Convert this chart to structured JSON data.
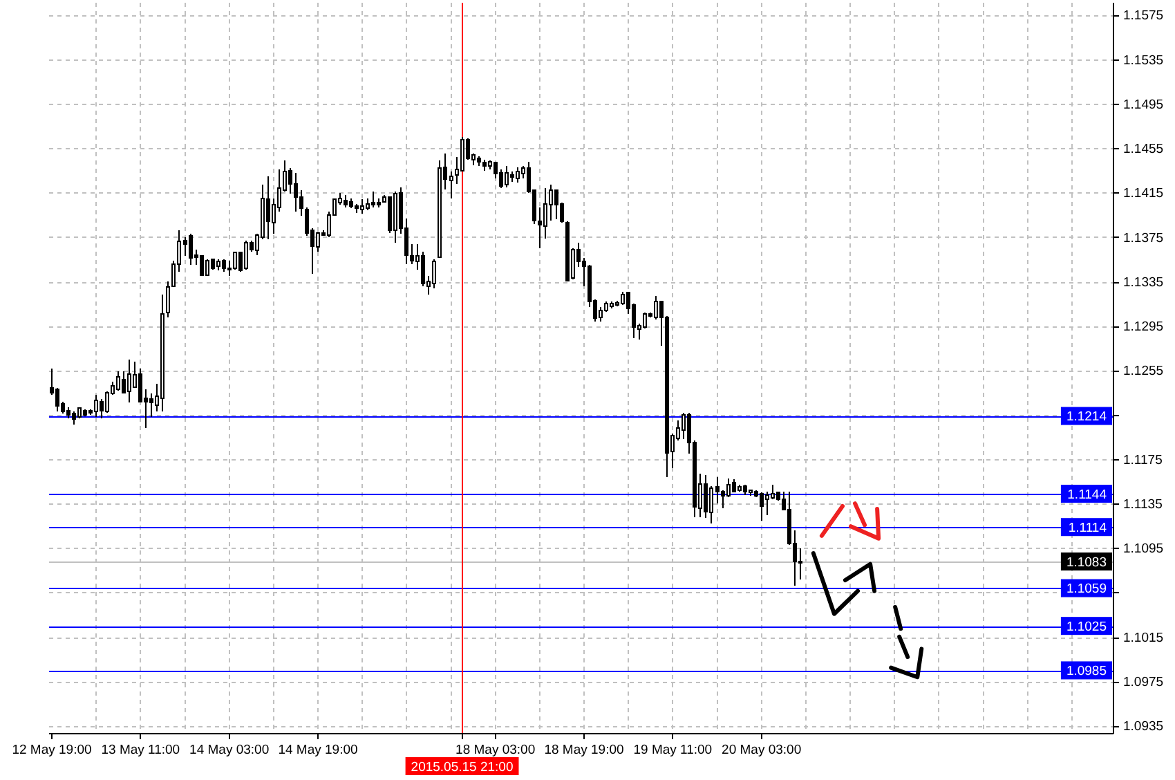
{
  "chart_data": {
    "type": "candlestick",
    "categories": [
      "12 May 19:00",
      null,
      null,
      null,
      null,
      null,
      null,
      null,
      null,
      null,
      null,
      null,
      null,
      null,
      null,
      null,
      "13 May 11:00",
      null,
      null,
      null,
      null,
      null,
      null,
      null,
      null,
      null,
      null,
      null,
      null,
      null,
      null,
      null,
      "14 May 03:00",
      null,
      null,
      null,
      null,
      null,
      null,
      null,
      null,
      null,
      null,
      null,
      null,
      null,
      null,
      null,
      "14 May 19:00",
      null,
      null,
      null,
      null,
      null,
      null,
      null,
      null,
      null,
      null,
      null,
      null,
      null,
      null,
      null,
      null,
      null,
      null,
      null,
      null,
      null,
      null,
      null,
      null,
      null,
      "2015.05.15 21:00",
      null,
      null,
      null,
      null,
      null,
      "18 May 03:00",
      null,
      null,
      null,
      null,
      null,
      null,
      null,
      null,
      null,
      null,
      null,
      null,
      null,
      null,
      null,
      "18 May 19:00",
      null,
      null,
      null,
      null,
      null,
      null,
      null,
      null,
      null,
      null,
      null,
      null,
      null,
      null,
      null,
      "19 May 11:00",
      null,
      null,
      null,
      null,
      null,
      null,
      null,
      null,
      null,
      null,
      null,
      null,
      null,
      null,
      null,
      "20 May 03:00",
      null,
      null,
      null,
      null,
      null,
      null,
      null,
      null,
      null,
      null,
      null,
      null,
      null,
      null,
      null,
      null,
      null,
      null,
      null,
      null,
      null,
      null,
      null,
      null,
      null,
      null,
      null,
      null,
      null,
      null,
      null,
      null,
      null,
      null,
      null,
      null,
      null,
      null,
      null,
      null,
      null,
      null,
      null,
      null,
      null,
      null,
      null,
      null,
      null,
      null,
      null,
      null,
      null,
      null,
      null,
      null,
      null,
      null,
      null,
      null,
      null,
      null,
      null
    ],
    "ohlc": [
      [
        1.1239,
        1.1257,
        1.1233,
        1.1235
      ],
      [
        1.1238,
        1.1239,
        1.1218,
        1.1223
      ],
      [
        1.1225,
        1.1227,
        1.1216,
        1.1218
      ],
      [
        1.1219,
        1.1222,
        1.1212,
        1.1215
      ],
      [
        1.1216,
        1.1218,
        1.1206,
        1.1211
      ],
      [
        1.1213,
        1.1222,
        1.1212,
        1.1221
      ],
      [
        1.1219,
        1.122,
        1.1214,
        1.1215
      ],
      [
        1.1219,
        1.122,
        1.1215,
        1.1217
      ],
      [
        1.1218,
        1.1233,
        1.1213,
        1.1228
      ],
      [
        1.1227,
        1.1229,
        1.1212,
        1.1219
      ],
      [
        1.1218,
        1.1236,
        1.1217,
        1.1235
      ],
      [
        1.1234,
        1.1245,
        1.1233,
        1.1241
      ],
      [
        1.1238,
        1.1254,
        1.1237,
        1.1249
      ],
      [
        1.1247,
        1.1254,
        1.1234,
        1.1235
      ],
      [
        1.1236,
        1.1265,
        1.1226,
        1.1252
      ],
      [
        1.124,
        1.1263,
        1.1239,
        1.1251
      ],
      [
        1.1252,
        1.1257,
        1.1226,
        1.1227
      ],
      [
        1.123,
        1.1238,
        1.1203,
        1.1227
      ],
      [
        1.1229,
        1.1234,
        1.1213,
        1.1226
      ],
      [
        1.1224,
        1.1243,
        1.1218,
        1.1232
      ],
      [
        1.123,
        1.1323,
        1.1218,
        1.1306
      ],
      [
        1.1307,
        1.1335,
        1.1303,
        1.133
      ],
      [
        1.1331,
        1.1354,
        1.133,
        1.1351
      ],
      [
        1.1351,
        1.1381,
        1.1344,
        1.1371
      ],
      [
        1.1372,
        1.1375,
        1.1358,
        1.1369
      ],
      [
        1.1376,
        1.1378,
        1.135,
        1.1356
      ],
      [
        1.1359,
        1.1364,
        1.135,
        1.1357
      ],
      [
        1.1358,
        1.1359,
        1.134,
        1.1341
      ],
      [
        1.1341,
        1.1355,
        1.134,
        1.1354
      ],
      [
        1.1355,
        1.1355,
        1.1346,
        1.1347
      ],
      [
        1.1349,
        1.1355,
        1.1345,
        1.1353
      ],
      [
        1.1354,
        1.1355,
        1.1344,
        1.1347
      ],
      [
        1.1347,
        1.1354,
        1.134,
        1.1346
      ],
      [
        1.1347,
        1.1362,
        1.1346,
        1.1361
      ],
      [
        1.1361,
        1.1362,
        1.1344,
        1.1345
      ],
      [
        1.1347,
        1.1372,
        1.1346,
        1.137
      ],
      [
        1.137,
        1.1372,
        1.1362,
        1.1364
      ],
      [
        1.1363,
        1.1378,
        1.1359,
        1.1377
      ],
      [
        1.1375,
        1.1422,
        1.1373,
        1.141
      ],
      [
        1.1409,
        1.143,
        1.1373,
        1.1389
      ],
      [
        1.1388,
        1.141,
        1.1378,
        1.1404
      ],
      [
        1.1402,
        1.1436,
        1.1398,
        1.1419
      ],
      [
        1.1417,
        1.1444,
        1.1416,
        1.1434
      ],
      [
        1.1435,
        1.1437,
        1.1414,
        1.1423
      ],
      [
        1.1423,
        1.1433,
        1.1398,
        1.1411
      ],
      [
        1.1411,
        1.1417,
        1.1394,
        1.1401
      ],
      [
        1.14,
        1.1402,
        1.1376,
        1.1379
      ],
      [
        1.1381,
        1.1383,
        1.1342,
        1.1367
      ],
      [
        1.1366,
        1.138,
        1.1362,
        1.1379
      ],
      [
        1.1379,
        1.1381,
        1.1376,
        1.1377
      ],
      [
        1.1377,
        1.1398,
        1.1375,
        1.1395
      ],
      [
        1.1395,
        1.141,
        1.1394,
        1.1409
      ],
      [
        1.1406,
        1.1415,
        1.1404,
        1.141
      ],
      [
        1.1408,
        1.1413,
        1.1402,
        1.1404
      ],
      [
        1.1407,
        1.141,
        1.1401,
        1.1403
      ],
      [
        1.1403,
        1.1405,
        1.1397,
        1.1401
      ],
      [
        1.14,
        1.1409,
        1.1396,
        1.1403
      ],
      [
        1.1401,
        1.141,
        1.1399,
        1.1405
      ],
      [
        1.1406,
        1.1416,
        1.1402,
        1.1404
      ],
      [
        1.1406,
        1.141,
        1.1402,
        1.1404
      ],
      [
        1.1407,
        1.1413,
        1.1406,
        1.1411
      ],
      [
        1.1411,
        1.1412,
        1.1379,
        1.1381
      ],
      [
        1.1381,
        1.1416,
        1.137,
        1.1414
      ],
      [
        1.1415,
        1.142,
        1.1378,
        1.1383
      ],
      [
        1.1383,
        1.1392,
        1.1351,
        1.1359
      ],
      [
        1.1358,
        1.1369,
        1.1351,
        1.1354
      ],
      [
        1.1353,
        1.1369,
        1.1346,
        1.1358
      ],
      [
        1.1358,
        1.1362,
        1.1331,
        1.1333
      ],
      [
        1.1331,
        1.134,
        1.1323,
        1.1335
      ],
      [
        1.1333,
        1.1355,
        1.1329,
        1.1353
      ],
      [
        1.1357,
        1.1444,
        1.1356,
        1.1437
      ],
      [
        1.1438,
        1.145,
        1.1418,
        1.1427
      ],
      [
        1.1426,
        1.1434,
        1.141,
        1.143
      ],
      [
        1.1431,
        1.1447,
        1.1423,
        1.1436
      ],
      [
        1.1435,
        1.1465,
        1.1434,
        1.1463
      ],
      [
        1.1463,
        1.1464,
        1.1445,
        1.1446
      ],
      [
        1.1445,
        1.145,
        1.144,
        1.1449
      ],
      [
        1.1446,
        1.1448,
        1.1439,
        1.1443
      ],
      [
        1.1442,
        1.1445,
        1.1435,
        1.1439
      ],
      [
        1.1439,
        1.1444,
        1.1436,
        1.1443
      ],
      [
        1.1442,
        1.1443,
        1.1428,
        1.1432
      ],
      [
        1.1433,
        1.1436,
        1.1419,
        1.1421
      ],
      [
        1.1422,
        1.1439,
        1.142,
        1.1433
      ],
      [
        1.1431,
        1.1434,
        1.1425,
        1.1429
      ],
      [
        1.1428,
        1.1438,
        1.1424,
        1.1434
      ],
      [
        1.1432,
        1.1439,
        1.1428,
        1.1437
      ],
      [
        1.1437,
        1.1443,
        1.1415,
        1.1416
      ],
      [
        1.1417,
        1.1418,
        1.1387,
        1.139
      ],
      [
        1.1389,
        1.1402,
        1.1365,
        1.1386
      ],
      [
        1.1385,
        1.1419,
        1.1374,
        1.1405
      ],
      [
        1.1404,
        1.1422,
        1.139,
        1.1417
      ],
      [
        1.1417,
        1.1418,
        1.1391,
        1.1404
      ],
      [
        1.1405,
        1.1406,
        1.1388,
        1.1389
      ],
      [
        1.1388,
        1.1389,
        1.1335,
        1.1336
      ],
      [
        1.1338,
        1.1365,
        1.1337,
        1.1364
      ],
      [
        1.1364,
        1.137,
        1.1348,
        1.1353
      ],
      [
        1.1353,
        1.1356,
        1.1331,
        1.1349
      ],
      [
        1.1349,
        1.135,
        1.1312,
        1.1317
      ],
      [
        1.1318,
        1.1319,
        1.1299,
        1.1302
      ],
      [
        1.1303,
        1.1312,
        1.1299,
        1.1309
      ],
      [
        1.1309,
        1.1317,
        1.1308,
        1.1315
      ],
      [
        1.1313,
        1.1317,
        1.1311,
        1.1315
      ],
      [
        1.1314,
        1.1318,
        1.1313,
        1.1316
      ],
      [
        1.1315,
        1.1326,
        1.1314,
        1.1323
      ],
      [
        1.1325,
        1.1326,
        1.1306,
        1.1311
      ],
      [
        1.1314,
        1.1315,
        1.1284,
        1.1294
      ],
      [
        1.1292,
        1.1297,
        1.1283,
        1.1295
      ],
      [
        1.1294,
        1.1307,
        1.1293,
        1.1306
      ],
      [
        1.1306,
        1.1307,
        1.1303,
        1.1304
      ],
      [
        1.1303,
        1.1322,
        1.1301,
        1.1317
      ],
      [
        1.1317,
        1.1318,
        1.1277,
        1.1303
      ],
      [
        1.1303,
        1.1304,
        1.1159,
        1.1181
      ],
      [
        1.1182,
        1.1198,
        1.1167,
        1.1196
      ],
      [
        1.1194,
        1.121,
        1.1192,
        1.1203
      ],
      [
        1.1201,
        1.1217,
        1.1193,
        1.1215
      ],
      [
        1.1215,
        1.1217,
        1.118,
        1.119
      ],
      [
        1.119,
        1.1192,
        1.1123,
        1.1132
      ],
      [
        1.1131,
        1.1162,
        1.1123,
        1.1153
      ],
      [
        1.1153,
        1.1161,
        1.1122,
        1.1128
      ],
      [
        1.1127,
        1.1151,
        1.1117,
        1.1149
      ],
      [
        1.115,
        1.1159,
        1.1135,
        1.1146
      ],
      [
        1.1146,
        1.1147,
        1.1131,
        1.1142
      ],
      [
        1.1142,
        1.1158,
        1.1141,
        1.1152
      ],
      [
        1.1154,
        1.1157,
        1.1145,
        1.1146
      ],
      [
        1.1147,
        1.1152,
        1.1146,
        1.115
      ],
      [
        1.1151,
        1.1152,
        1.1143,
        1.1146
      ],
      [
        1.1145,
        1.1148,
        1.1142,
        1.1147
      ],
      [
        1.1146,
        1.1147,
        1.1141,
        1.1142
      ],
      [
        1.1144,
        1.1145,
        1.112,
        1.1133
      ],
      [
        1.1139,
        1.1146,
        1.1125,
        1.1143
      ],
      [
        1.114,
        1.1152,
        1.1139,
        1.1144
      ],
      [
        1.1145,
        1.1146,
        1.1138,
        1.1139
      ],
      [
        1.1139,
        1.1146,
        1.1129,
        1.113
      ],
      [
        1.113,
        1.1146,
        1.1098,
        1.1099
      ],
      [
        1.1099,
        1.1111,
        1.1061,
        1.1083
      ],
      [
        1.1083,
        1.1095,
        1.1067,
        1.1083
      ],
      null,
      null,
      null,
      null,
      null,
      null,
      null,
      null,
      null,
      null,
      null,
      null,
      null,
      null,
      null,
      null,
      null,
      null,
      null,
      null,
      null,
      null,
      null,
      null,
      null,
      null,
      null,
      null,
      null,
      null,
      null,
      null,
      null,
      null,
      null,
      null,
      null,
      null,
      null,
      null,
      null,
      null,
      null,
      null,
      null,
      null,
      null,
      null,
      null,
      null,
      null,
      null,
      null,
      null,
      null,
      null
    ],
    "ylim": [
      1.0928,
      1.1586
    ],
    "yticks": [
      1.0935,
      1.0975,
      1.1015,
      {
        "value": 1.1055,
        "label": null
      },
      1.1095,
      1.1135,
      1.1175,
      {
        "value": 1.1215,
        "label": null
      },
      1.1255,
      1.1295,
      1.1335,
      1.1375,
      1.1415,
      1.1455,
      1.1495,
      1.1535,
      1.1575
    ],
    "grid": true,
    "ref_lines": [
      {
        "axis": "y",
        "value": 1.1214,
        "label": "1.1214",
        "color": "#0000ff"
      },
      {
        "axis": "y",
        "value": 1.1144,
        "label": "1.1144",
        "color": "#0000ff"
      },
      {
        "axis": "y",
        "value": 1.1114,
        "label": "1.1114",
        "color": "#0000ff"
      },
      {
        "axis": "y",
        "value": 1.1083,
        "label": "1.1083",
        "color": "#c0c0c0"
      },
      {
        "axis": "y",
        "value": 1.1059,
        "label": "1.1059",
        "color": "#0000ff"
      },
      {
        "axis": "y",
        "value": 1.1025,
        "label": "1.1025",
        "color": "#0000ff"
      },
      {
        "axis": "y",
        "value": 1.0985,
        "label": "1.0985",
        "color": "#0000ff"
      },
      {
        "axis": "x",
        "value": "2015.05.15 21:00",
        "color": "#ff0000"
      }
    ]
  }
}
